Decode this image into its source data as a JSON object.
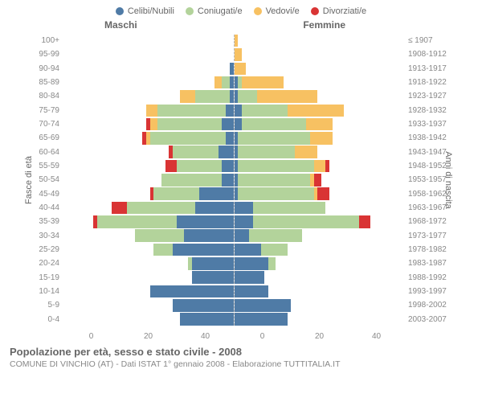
{
  "legend": [
    {
      "label": "Celibi/Nubili",
      "color": "#4f7ba6"
    },
    {
      "label": "Coniugati/e",
      "color": "#b3d39b"
    },
    {
      "label": "Vedovi/e",
      "color": "#f7c162"
    },
    {
      "label": "Divorziati/e",
      "color": "#d93434"
    }
  ],
  "headers": {
    "left": "Maschi",
    "right": "Femmine"
  },
  "yaxis": {
    "left": "Fasce di età",
    "right": "Anni di nascita"
  },
  "xaxis": {
    "max": 45,
    "ticks_left": [
      "40",
      "20",
      "0"
    ],
    "ticks_right": [
      "0",
      "20",
      "40"
    ]
  },
  "colors": {
    "celibi": "#4f7ba6",
    "coniugati": "#b3d39b",
    "vedovi": "#f7c162",
    "divorziati": "#d93434",
    "grid": "#bbbbbb",
    "text": "#666666"
  },
  "rows": [
    {
      "age": "100+",
      "birth": "≤ 1907",
      "m": {
        "c": 0,
        "g": 0,
        "v": 0,
        "d": 0
      },
      "f": {
        "c": 0,
        "g": 0,
        "v": 1,
        "d": 0
      }
    },
    {
      "age": "95-99",
      "birth": "1908-1912",
      "m": {
        "c": 0,
        "g": 0,
        "v": 0,
        "d": 0
      },
      "f": {
        "c": 0,
        "g": 0,
        "v": 2,
        "d": 0
      }
    },
    {
      "age": "90-94",
      "birth": "1913-1917",
      "m": {
        "c": 1,
        "g": 0,
        "v": 0,
        "d": 0
      },
      "f": {
        "c": 0,
        "g": 0,
        "v": 3,
        "d": 0
      }
    },
    {
      "age": "85-89",
      "birth": "1918-1922",
      "m": {
        "c": 1,
        "g": 2,
        "v": 2,
        "d": 0
      },
      "f": {
        "c": 1,
        "g": 1,
        "v": 11,
        "d": 0
      }
    },
    {
      "age": "80-84",
      "birth": "1923-1927",
      "m": {
        "c": 1,
        "g": 9,
        "v": 4,
        "d": 0
      },
      "f": {
        "c": 1,
        "g": 5,
        "v": 16,
        "d": 0
      }
    },
    {
      "age": "75-79",
      "birth": "1928-1932",
      "m": {
        "c": 2,
        "g": 18,
        "v": 3,
        "d": 0
      },
      "f": {
        "c": 2,
        "g": 12,
        "v": 15,
        "d": 0
      }
    },
    {
      "age": "70-74",
      "birth": "1933-1937",
      "m": {
        "c": 3,
        "g": 17,
        "v": 2,
        "d": 1
      },
      "f": {
        "c": 2,
        "g": 17,
        "v": 7,
        "d": 0
      }
    },
    {
      "age": "65-69",
      "birth": "1938-1942",
      "m": {
        "c": 2,
        "g": 20,
        "v": 1,
        "d": 1
      },
      "f": {
        "c": 1,
        "g": 19,
        "v": 6,
        "d": 0
      }
    },
    {
      "age": "60-64",
      "birth": "1943-1947",
      "m": {
        "c": 4,
        "g": 12,
        "v": 0,
        "d": 1
      },
      "f": {
        "c": 1,
        "g": 15,
        "v": 6,
        "d": 0
      }
    },
    {
      "age": "55-59",
      "birth": "1948-1952",
      "m": {
        "c": 3,
        "g": 12,
        "v": 0,
        "d": 3
      },
      "f": {
        "c": 1,
        "g": 20,
        "v": 3,
        "d": 1
      }
    },
    {
      "age": "50-54",
      "birth": "1953-1957",
      "m": {
        "c": 3,
        "g": 16,
        "v": 0,
        "d": 0
      },
      "f": {
        "c": 1,
        "g": 19,
        "v": 1,
        "d": 2
      }
    },
    {
      "age": "45-49",
      "birth": "1958-1962",
      "m": {
        "c": 9,
        "g": 12,
        "v": 0,
        "d": 1
      },
      "f": {
        "c": 1,
        "g": 20,
        "v": 1,
        "d": 3
      }
    },
    {
      "age": "40-44",
      "birth": "1963-1967",
      "m": {
        "c": 10,
        "g": 18,
        "v": 0,
        "d": 4
      },
      "f": {
        "c": 5,
        "g": 19,
        "v": 0,
        "d": 0
      }
    },
    {
      "age": "35-39",
      "birth": "1968-1972",
      "m": {
        "c": 15,
        "g": 21,
        "v": 0,
        "d": 1
      },
      "f": {
        "c": 5,
        "g": 28,
        "v": 0,
        "d": 3
      }
    },
    {
      "age": "30-34",
      "birth": "1973-1977",
      "m": {
        "c": 13,
        "g": 13,
        "v": 0,
        "d": 0
      },
      "f": {
        "c": 4,
        "g": 14,
        "v": 0,
        "d": 0
      }
    },
    {
      "age": "25-29",
      "birth": "1978-1982",
      "m": {
        "c": 16,
        "g": 5,
        "v": 0,
        "d": 0
      },
      "f": {
        "c": 7,
        "g": 7,
        "v": 0,
        "d": 0
      }
    },
    {
      "age": "20-24",
      "birth": "1983-1987",
      "m": {
        "c": 11,
        "g": 1,
        "v": 0,
        "d": 0
      },
      "f": {
        "c": 9,
        "g": 2,
        "v": 0,
        "d": 0
      }
    },
    {
      "age": "15-19",
      "birth": "1988-1992",
      "m": {
        "c": 11,
        "g": 0,
        "v": 0,
        "d": 0
      },
      "f": {
        "c": 8,
        "g": 0,
        "v": 0,
        "d": 0
      }
    },
    {
      "age": "10-14",
      "birth": "1993-1997",
      "m": {
        "c": 22,
        "g": 0,
        "v": 0,
        "d": 0
      },
      "f": {
        "c": 9,
        "g": 0,
        "v": 0,
        "d": 0
      }
    },
    {
      "age": "5-9",
      "birth": "1998-2002",
      "m": {
        "c": 16,
        "g": 0,
        "v": 0,
        "d": 0
      },
      "f": {
        "c": 15,
        "g": 0,
        "v": 0,
        "d": 0
      }
    },
    {
      "age": "0-4",
      "birth": "2003-2007",
      "m": {
        "c": 14,
        "g": 0,
        "v": 0,
        "d": 0
      },
      "f": {
        "c": 14,
        "g": 0,
        "v": 0,
        "d": 0
      }
    }
  ],
  "footer": {
    "title": "Popolazione per età, sesso e stato civile - 2008",
    "sub": "COMUNE DI VINCHIO (AT) - Dati ISTAT 1° gennaio 2008 - Elaborazione TUTTITALIA.IT"
  }
}
